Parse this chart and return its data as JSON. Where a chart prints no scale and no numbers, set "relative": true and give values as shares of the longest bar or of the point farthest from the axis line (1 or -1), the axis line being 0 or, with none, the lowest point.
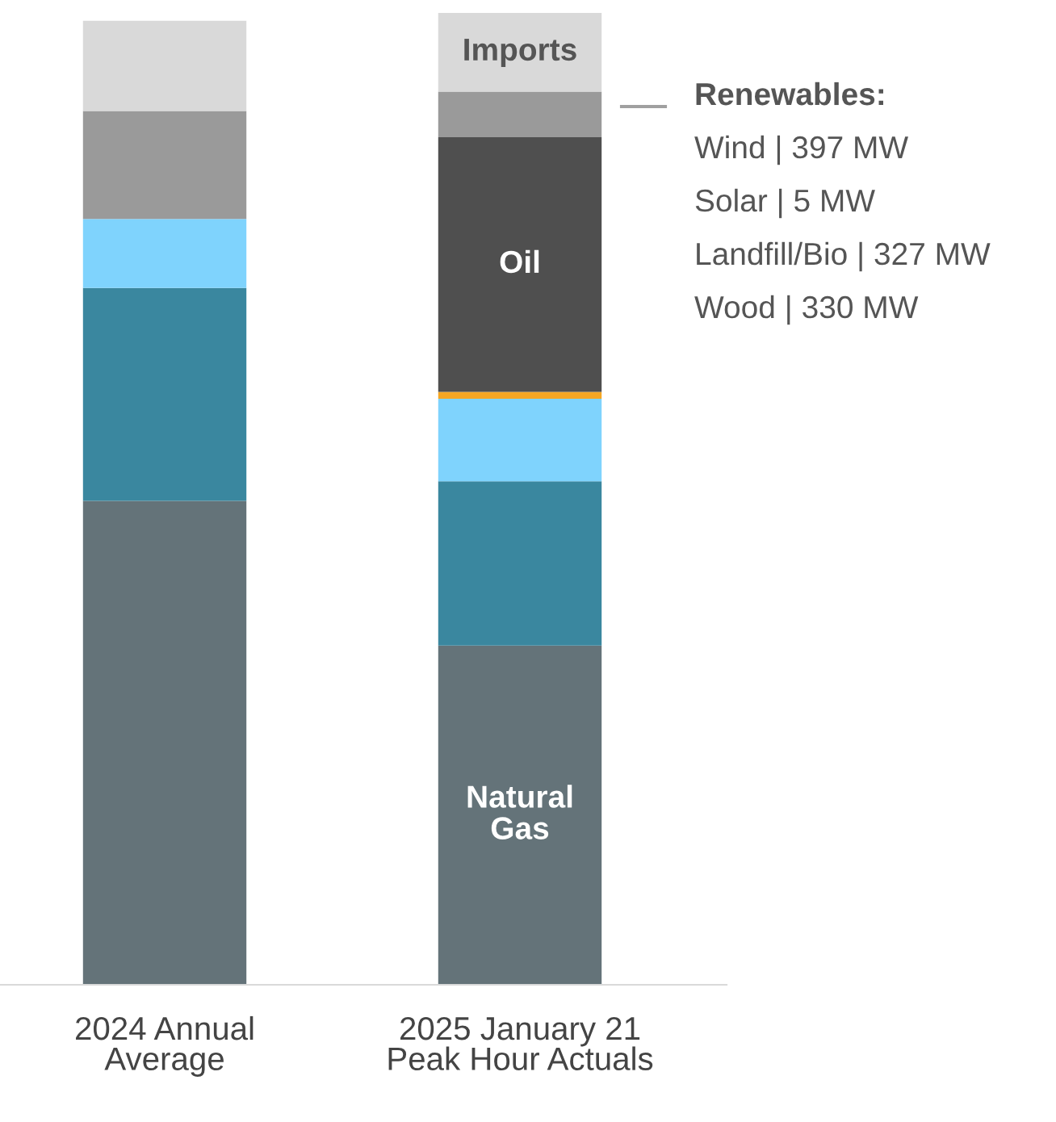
{
  "chart_data": {
    "type": "bar",
    "stacked": true,
    "relative": true,
    "categories": [
      "2024 Annual\nAverage",
      "2025 January 21\nPeak Hour Actuals"
    ],
    "series": [
      {
        "name": "Natural\nGas",
        "color": "#647379",
        "values": [
          0.498,
          0.349
        ]
      },
      {
        "color": "#3a879f",
        "values": [
          0.219,
          0.169
        ]
      },
      {
        "color": "#7fd3fd",
        "values": [
          0.071,
          0.085
        ]
      },
      {
        "color": "#f5a623",
        "values": [
          0,
          0.007
        ]
      },
      {
        "name": "Oil",
        "color": "#4f4f4f",
        "values": [
          0,
          0.262
        ]
      },
      {
        "color": "#9a9a9a",
        "values": [
          0.111,
          0.047
        ]
      },
      {
        "name": "Imports",
        "color": "#d9d9d9",
        "values": [
          0.093,
          0.081
        ]
      }
    ],
    "annotations": [
      "Renewables:",
      "Wind | 397 MW",
      "Solar | 5 MW",
      "Landfill/Bio | 327 MW",
      "Wood | 330 MW"
    ]
  }
}
